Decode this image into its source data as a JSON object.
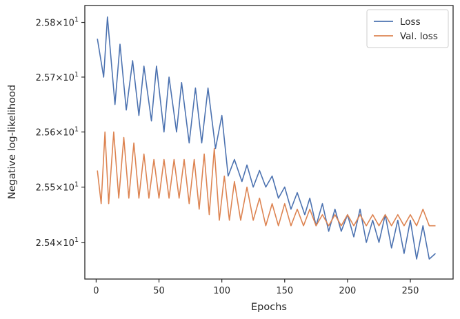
{
  "chart_data": {
    "type": "line",
    "xlabel": "Epochs",
    "ylabel": "Negative log-likelihood",
    "xlim": [
      -9,
      284
    ],
    "ylim": [
      25.334,
      25.831
    ],
    "x_ticks": [
      0,
      50,
      100,
      150,
      200,
      250
    ],
    "y_ticks": [
      {
        "value": 25.4,
        "mantissa": "2.54",
        "exponent": "1"
      },
      {
        "value": 25.5,
        "mantissa": "2.55",
        "exponent": "1"
      },
      {
        "value": 25.6,
        "mantissa": "2.56",
        "exponent": "1"
      },
      {
        "value": 25.7,
        "mantissa": "2.57",
        "exponent": "1"
      },
      {
        "value": 25.8,
        "mantissa": "2.58",
        "exponent": "1"
      }
    ],
    "y_scale": "log",
    "tick_times": "×",
    "grid": false,
    "legend_position": "top-right",
    "series": [
      {
        "name": "Loss",
        "color": "#4c72b0",
        "x": [
          1,
          6,
          9,
          15,
          19,
          24,
          29,
          34,
          38,
          44,
          48,
          54,
          58,
          64,
          68,
          74,
          79,
          84,
          89,
          95,
          100,
          105,
          110,
          116,
          120,
          125,
          130,
          135,
          140,
          145,
          150,
          155,
          160,
          166,
          170,
          175,
          180,
          185,
          190,
          195,
          200,
          205,
          210,
          215,
          220,
          225,
          230,
          235,
          240,
          245,
          250,
          255,
          260,
          265,
          270
        ],
        "y": [
          25.77,
          25.7,
          25.81,
          25.65,
          25.76,
          25.64,
          25.73,
          25.63,
          25.72,
          25.62,
          25.72,
          25.6,
          25.7,
          25.6,
          25.69,
          25.58,
          25.68,
          25.58,
          25.68,
          25.57,
          25.63,
          25.52,
          25.55,
          25.51,
          25.54,
          25.5,
          25.53,
          25.5,
          25.52,
          25.48,
          25.5,
          25.46,
          25.49,
          25.45,
          25.48,
          25.43,
          25.47,
          25.42,
          25.46,
          25.42,
          25.45,
          25.41,
          25.46,
          25.4,
          25.44,
          25.4,
          25.45,
          25.39,
          25.44,
          25.38,
          25.44,
          25.37,
          25.43,
          25.37,
          25.38
        ]
      },
      {
        "name": "Val. loss",
        "color": "#dd8452",
        "x": [
          1,
          4,
          7,
          10,
          14,
          18,
          22,
          26,
          30,
          34,
          38,
          42,
          46,
          50,
          54,
          58,
          62,
          66,
          70,
          74,
          78,
          82,
          86,
          90,
          94,
          98,
          102,
          106,
          110,
          115,
          120,
          125,
          130,
          135,
          140,
          145,
          150,
          155,
          160,
          165,
          170,
          175,
          180,
          185,
          190,
          195,
          200,
          205,
          210,
          215,
          220,
          225,
          230,
          235,
          240,
          245,
          250,
          255,
          260,
          265,
          270
        ],
        "y": [
          25.53,
          25.47,
          25.6,
          25.47,
          25.6,
          25.48,
          25.59,
          25.48,
          25.58,
          25.48,
          25.56,
          25.48,
          25.55,
          25.48,
          25.55,
          25.48,
          25.55,
          25.48,
          25.55,
          25.47,
          25.55,
          25.46,
          25.56,
          25.45,
          25.57,
          25.44,
          25.52,
          25.44,
          25.51,
          25.44,
          25.5,
          25.44,
          25.48,
          25.43,
          25.47,
          25.43,
          25.47,
          25.43,
          25.46,
          25.43,
          25.46,
          25.43,
          25.45,
          25.43,
          25.45,
          25.43,
          25.45,
          25.43,
          25.45,
          25.43,
          25.45,
          25.43,
          25.45,
          25.43,
          25.45,
          25.43,
          25.45,
          25.43,
          25.46,
          25.43,
          25.43
        ]
      }
    ]
  }
}
